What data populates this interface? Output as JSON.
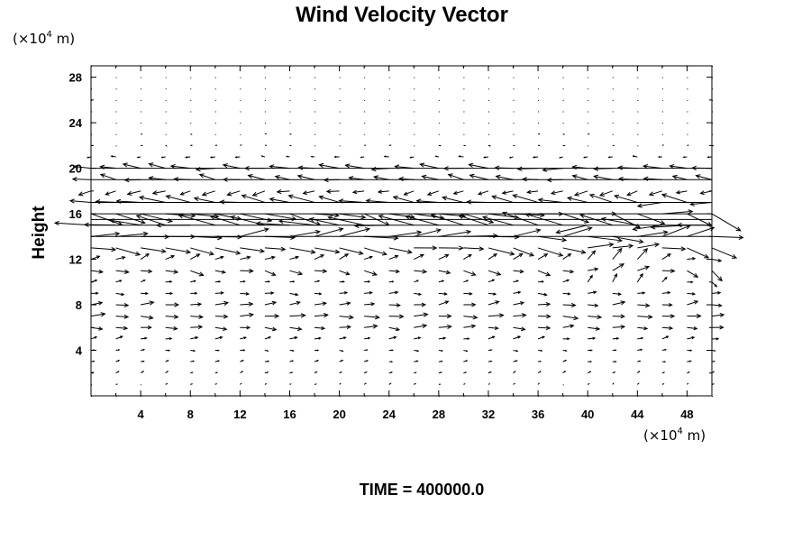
{
  "chart_data": {
    "type": "vector-field",
    "title": "Wind Velocity Vector",
    "ylabel": "Height",
    "y_unit": {
      "prefix": "(×10",
      "exp": "4",
      "suffix": " m)"
    },
    "x_unit": {
      "prefix": "(×10",
      "exp": "4",
      "suffix": " m)"
    },
    "footer": "TIME = 400000.0",
    "xlim": [
      0,
      50
    ],
    "ylim": [
      0,
      29
    ],
    "x_ticks": [
      "4",
      "8",
      "12",
      "16",
      "20",
      "24",
      "28",
      "32",
      "36",
      "40",
      "44",
      "48"
    ],
    "y_ticks": [
      "4",
      "8",
      "12",
      "16",
      "20",
      "24",
      "28"
    ],
    "grid": false,
    "vector_grid": {
      "x_spacing": 2,
      "y_spacing": 1,
      "x_start": 0,
      "y_start": 0
    },
    "vector_profile": [
      {
        "height": 0,
        "u": 0.0,
        "v": 0.0
      },
      {
        "height": 2,
        "u": 0.2,
        "v": 0.1
      },
      {
        "height": 4,
        "u": 0.3,
        "v": 0.0
      },
      {
        "height": 5,
        "u": 0.5,
        "v": 0.1
      },
      {
        "height": 6,
        "u": 0.9,
        "v": 0.0
      },
      {
        "height": 7,
        "u": 1.1,
        "v": 0.0
      },
      {
        "height": 8,
        "u": 0.9,
        "v": 0.1
      },
      {
        "height": 9,
        "u": 0.6,
        "v": 0.0
      },
      {
        "height": 10,
        "u": 0.4,
        "v": 0.1
      },
      {
        "height": 11,
        "u": 0.9,
        "v": -0.2
      },
      {
        "height": 12,
        "u": 0.7,
        "v": 0.3
      },
      {
        "height": 13,
        "u": 1.8,
        "v": -0.3
      },
      {
        "height": 14,
        "u": 2.4,
        "v": 0.2
      },
      {
        "height": 15,
        "u": -2.6,
        "v": 0.4
      },
      {
        "height": 16,
        "u": 2.2,
        "v": -0.5
      },
      {
        "height": 17,
        "u": -1.8,
        "v": 0.3
      },
      {
        "height": 18,
        "u": -0.9,
        "v": -0.2
      },
      {
        "height": 19,
        "u": -1.3,
        "v": 0.2
      },
      {
        "height": 20,
        "u": -1.4,
        "v": 0.1
      },
      {
        "height": 21,
        "u": -0.3,
        "v": 0.0
      },
      {
        "height": 22,
        "u": 0.1,
        "v": 0.0
      },
      {
        "height": 24,
        "u": 0.05,
        "v": 0.0
      },
      {
        "height": 29,
        "u": 0.0,
        "v": 0.0
      }
    ],
    "reference_lines_height": [
      20,
      19,
      17,
      16,
      15.5,
      15,
      14
    ]
  }
}
